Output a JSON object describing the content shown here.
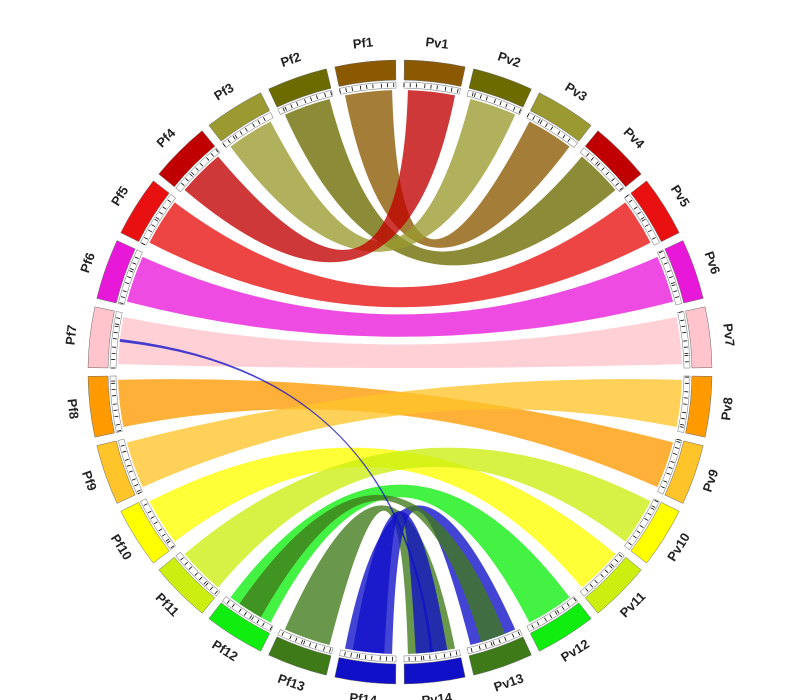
{
  "chart_data": {
    "type": "chord",
    "right": [
      {
        "label": "Pv1",
        "color": "#8b5a00"
      },
      {
        "label": "Pv2",
        "color": "#6b6b00"
      },
      {
        "label": "Pv3",
        "color": "#9a9a30"
      },
      {
        "label": "Pv4",
        "color": "#c00000"
      },
      {
        "label": "Pv5",
        "color": "#e81010"
      },
      {
        "label": "Pv6",
        "color": "#e818d8"
      },
      {
        "label": "Pv7",
        "color": "#ffc4cc"
      },
      {
        "label": "Pv8",
        "color": "#ff9a00"
      },
      {
        "label": "Pv9",
        "color": "#ffc42a"
      },
      {
        "label": "Pv10",
        "color": "#ffff00"
      },
      {
        "label": "Pv11",
        "color": "#ccee10"
      },
      {
        "label": "Pv12",
        "color": "#10ee10"
      },
      {
        "label": "Pv13",
        "color": "#3f7a18"
      },
      {
        "label": "Pv14",
        "color": "#1010c8"
      }
    ],
    "left": [
      {
        "label": "Pf1",
        "color": "#8b5a00"
      },
      {
        "label": "Pf2",
        "color": "#6b6b00"
      },
      {
        "label": "Pf3",
        "color": "#9a9a30"
      },
      {
        "label": "Pf4",
        "color": "#c00000"
      },
      {
        "label": "Pf5",
        "color": "#e81010"
      },
      {
        "label": "Pf6",
        "color": "#e818d8"
      },
      {
        "label": "Pf7",
        "color": "#ffc4cc"
      },
      {
        "label": "Pf8",
        "color": "#ff9a00"
      },
      {
        "label": "Pf9",
        "color": "#ffc42a"
      },
      {
        "label": "Pf10",
        "color": "#ffff00"
      },
      {
        "label": "Pf11",
        "color": "#ccee10"
      },
      {
        "label": "Pf12",
        "color": "#10ee10"
      },
      {
        "label": "Pf13",
        "color": "#3f7a18"
      },
      {
        "label": "Pf14",
        "color": "#1010c8"
      }
    ]
  }
}
